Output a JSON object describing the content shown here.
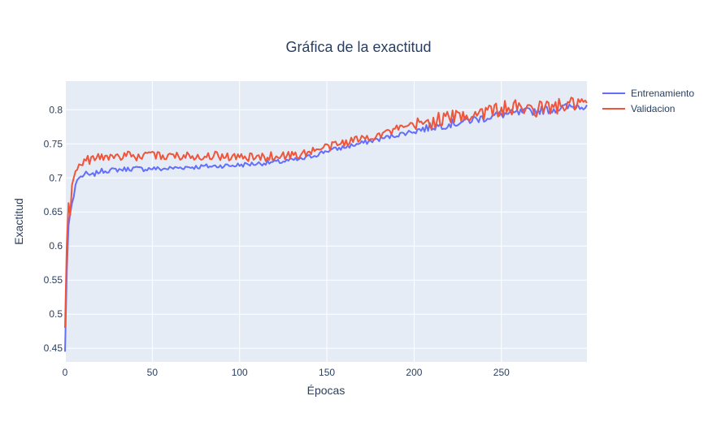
{
  "chart_data": {
    "type": "line",
    "title": "Gráfica de la exactitud",
    "xlabel": "Épocas",
    "ylabel": "Exactitud",
    "xlim": [
      0,
      299
    ],
    "ylim": [
      0.43,
      0.842
    ],
    "xticks": [
      0,
      50,
      100,
      150,
      200,
      250
    ],
    "xtick_labels": [
      "0",
      "50",
      "100",
      "150",
      "200",
      "250"
    ],
    "yticks": [
      0.45,
      0.5,
      0.55,
      0.6,
      0.65,
      0.7,
      0.75,
      0.8
    ],
    "ytick_labels": [
      "0.45",
      "0.5",
      "0.55",
      "0.6",
      "0.65",
      "0.7",
      "0.75",
      "0.8"
    ],
    "grid": true,
    "legend_position": "top-right",
    "background": "#e5ecf6",
    "series": [
      {
        "name": "Entrenamiento",
        "color": "#636efa",
        "points": [
          [
            0,
            0.445
          ],
          [
            1,
            0.56
          ],
          [
            2,
            0.63
          ],
          [
            3,
            0.648
          ],
          [
            4,
            0.663
          ],
          [
            5,
            0.672
          ],
          [
            6,
            0.69
          ],
          [
            7,
            0.697
          ],
          [
            8,
            0.7
          ],
          [
            10,
            0.703
          ],
          [
            12,
            0.706
          ],
          [
            15,
            0.703
          ],
          [
            18,
            0.707
          ],
          [
            20,
            0.71
          ],
          [
            25,
            0.711
          ],
          [
            30,
            0.712
          ],
          [
            35,
            0.713
          ],
          [
            40,
            0.714
          ],
          [
            45,
            0.713
          ],
          [
            50,
            0.714
          ],
          [
            55,
            0.713
          ],
          [
            60,
            0.714
          ],
          [
            65,
            0.715
          ],
          [
            70,
            0.716
          ],
          [
            75,
            0.716
          ],
          [
            80,
            0.717
          ],
          [
            85,
            0.717
          ],
          [
            90,
            0.718
          ],
          [
            95,
            0.718
          ],
          [
            100,
            0.719
          ],
          [
            105,
            0.72
          ],
          [
            110,
            0.721
          ],
          [
            115,
            0.722
          ],
          [
            120,
            0.723
          ],
          [
            125,
            0.724
          ],
          [
            130,
            0.726
          ],
          [
            135,
            0.727
          ],
          [
            140,
            0.731
          ],
          [
            145,
            0.735
          ],
          [
            150,
            0.74
          ],
          [
            155,
            0.742
          ],
          [
            160,
            0.745
          ],
          [
            165,
            0.748
          ],
          [
            170,
            0.751
          ],
          [
            175,
            0.754
          ],
          [
            180,
            0.757
          ],
          [
            185,
            0.76
          ],
          [
            190,
            0.763
          ],
          [
            195,
            0.766
          ],
          [
            200,
            0.769
          ],
          [
            205,
            0.772
          ],
          [
            210,
            0.775
          ],
          [
            215,
            0.777
          ],
          [
            220,
            0.779
          ],
          [
            225,
            0.781
          ],
          [
            230,
            0.784
          ],
          [
            235,
            0.786
          ],
          [
            240,
            0.788
          ],
          [
            245,
            0.791
          ],
          [
            250,
            0.793
          ],
          [
            255,
            0.794
          ],
          [
            260,
            0.795
          ],
          [
            265,
            0.797
          ],
          [
            270,
            0.799
          ],
          [
            275,
            0.8
          ],
          [
            280,
            0.801
          ],
          [
            285,
            0.803
          ],
          [
            290,
            0.804
          ],
          [
            295,
            0.806
          ],
          [
            299,
            0.807
          ]
        ]
      },
      {
        "name": "Validacion",
        "color": "#ef553b",
        "points": [
          [
            0,
            0.48
          ],
          [
            1,
            0.6
          ],
          [
            2,
            0.663
          ],
          [
            3,
            0.645
          ],
          [
            4,
            0.69
          ],
          [
            5,
            0.7
          ],
          [
            6,
            0.71
          ],
          [
            7,
            0.712
          ],
          [
            8,
            0.72
          ],
          [
            10,
            0.724
          ],
          [
            12,
            0.726
          ],
          [
            15,
            0.727
          ],
          [
            18,
            0.73
          ],
          [
            20,
            0.73
          ],
          [
            25,
            0.731
          ],
          [
            30,
            0.732
          ],
          [
            35,
            0.733
          ],
          [
            40,
            0.731
          ],
          [
            45,
            0.732
          ],
          [
            50,
            0.733
          ],
          [
            55,
            0.732
          ],
          [
            60,
            0.733
          ],
          [
            65,
            0.732
          ],
          [
            70,
            0.733
          ],
          [
            75,
            0.733
          ],
          [
            80,
            0.732
          ],
          [
            85,
            0.733
          ],
          [
            90,
            0.732
          ],
          [
            95,
            0.731
          ],
          [
            100,
            0.73
          ],
          [
            105,
            0.73
          ],
          [
            110,
            0.73
          ],
          [
            115,
            0.731
          ],
          [
            120,
            0.732
          ],
          [
            125,
            0.733
          ],
          [
            130,
            0.733
          ],
          [
            135,
            0.735
          ],
          [
            140,
            0.738
          ],
          [
            145,
            0.742
          ],
          [
            150,
            0.745
          ],
          [
            155,
            0.748
          ],
          [
            160,
            0.752
          ],
          [
            165,
            0.755
          ],
          [
            170,
            0.758
          ],
          [
            175,
            0.761
          ],
          [
            180,
            0.764
          ],
          [
            185,
            0.767
          ],
          [
            190,
            0.771
          ],
          [
            195,
            0.774
          ],
          [
            200,
            0.777
          ],
          [
            205,
            0.78
          ],
          [
            210,
            0.783
          ],
          [
            215,
            0.786
          ],
          [
            220,
            0.788
          ],
          [
            225,
            0.79
          ],
          [
            230,
            0.792
          ],
          [
            235,
            0.795
          ],
          [
            240,
            0.797
          ],
          [
            245,
            0.799
          ],
          [
            250,
            0.801
          ],
          [
            255,
            0.802
          ],
          [
            260,
            0.803
          ],
          [
            265,
            0.8
          ],
          [
            270,
            0.801
          ],
          [
            275,
            0.803
          ],
          [
            280,
            0.804
          ],
          [
            285,
            0.806
          ],
          [
            290,
            0.807
          ],
          [
            295,
            0.809
          ],
          [
            299,
            0.81
          ]
        ]
      }
    ]
  }
}
